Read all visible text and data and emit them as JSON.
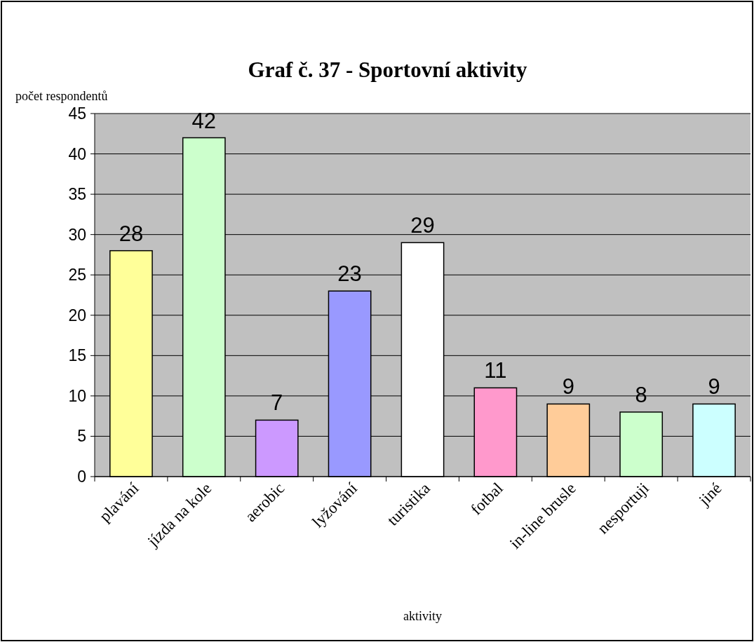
{
  "chart_data": {
    "type": "bar",
    "title": "Graf č. 37 - Sportovní aktivity",
    "ylabel": "počet respondentů",
    "xlabel": "aktivity",
    "categories": [
      "plavání",
      "jízda na kole",
      "aerobic",
      "lyžování",
      "turistika",
      "fotbal",
      "in-line brusle",
      "nesportuji",
      "jiné"
    ],
    "values": [
      28,
      42,
      7,
      23,
      29,
      11,
      9,
      8,
      9
    ],
    "colors": [
      "#ffff99",
      "#ccffcc",
      "#cc99ff",
      "#9999ff",
      "#ffffff",
      "#ff99cc",
      "#ffcc99",
      "#ccffcc",
      "#ccffff"
    ],
    "ylim": [
      0,
      45
    ],
    "yticks": [
      0,
      5,
      10,
      15,
      20,
      25,
      30,
      35,
      40,
      45
    ],
    "grid": "y",
    "data_labels": true
  }
}
